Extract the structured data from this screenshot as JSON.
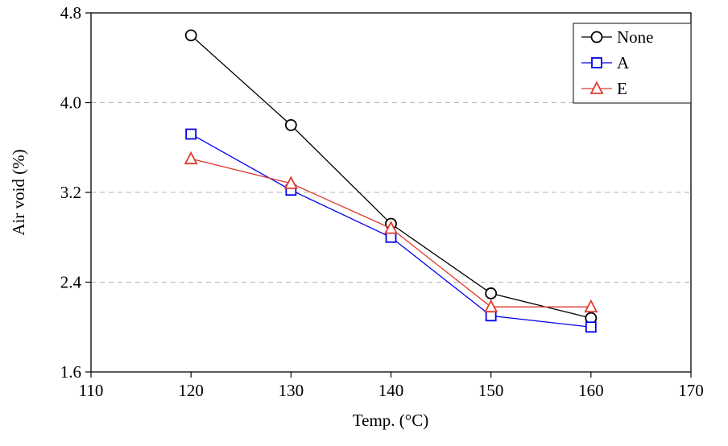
{
  "chart_data": {
    "type": "line",
    "title": "",
    "xlabel": "Temp. (°C)",
    "ylabel": "Air void (%)",
    "x": [
      120,
      130,
      140,
      150,
      160
    ],
    "xlim": [
      110,
      170
    ],
    "ylim": [
      1.6,
      4.8
    ],
    "x_ticks": [
      110,
      120,
      130,
      140,
      150,
      160,
      170
    ],
    "y_ticks": [
      1.6,
      2.4,
      3.2,
      4.0,
      4.8
    ],
    "grid": "horizontal-dashed",
    "legend_position": "top-right",
    "colors": {
      "none_series": "#000000",
      "a_series": "#0000ee",
      "e_series": "#e03a2f",
      "gridline": "#b5b5b5",
      "axis": "#000000"
    },
    "series": [
      {
        "name": "None",
        "color": "#000000",
        "marker": "circle",
        "values": [
          4.6,
          3.8,
          2.92,
          2.3,
          2.08
        ]
      },
      {
        "name": "A",
        "color": "#0000ee",
        "marker": "square",
        "values": [
          3.72,
          3.22,
          2.8,
          2.1,
          2.0
        ]
      },
      {
        "name": "E",
        "color": "#e03a2f",
        "marker": "triangle",
        "values": [
          3.5,
          3.28,
          2.88,
          2.18,
          2.18
        ]
      }
    ]
  }
}
